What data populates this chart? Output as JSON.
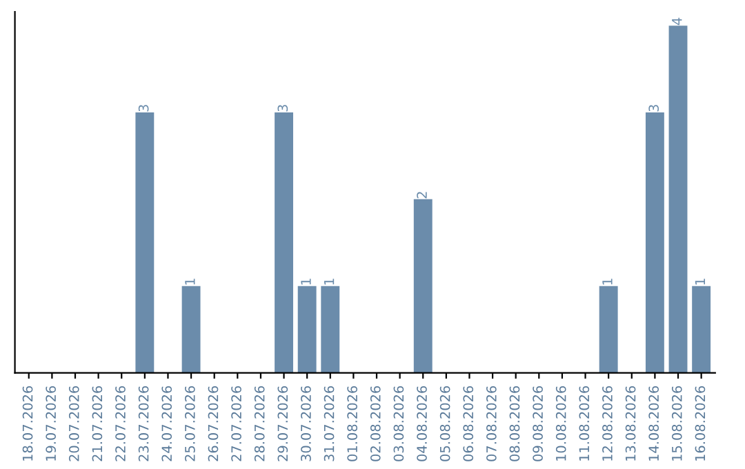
{
  "chart_data": {
    "type": "bar",
    "categories": [
      "18.07.2026",
      "19.07.2026",
      "20.07.2026",
      "21.07.2026",
      "22.07.2026",
      "23.07.2026",
      "24.07.2026",
      "25.07.2026",
      "26.07.2026",
      "27.07.2026",
      "28.07.2026",
      "29.07.2026",
      "30.07.2026",
      "31.07.2026",
      "01.08.2026",
      "02.08.2026",
      "03.08.2026",
      "04.08.2026",
      "05.08.2026",
      "06.08.2026",
      "07.08.2026",
      "08.08.2026",
      "09.08.2026",
      "10.08.2026",
      "11.08.2026",
      "12.08.2026",
      "13.08.2026",
      "14.08.2026",
      "15.08.2026",
      "16.08.2026"
    ],
    "values": [
      0,
      0,
      0,
      0,
      0,
      3,
      0,
      1,
      0,
      0,
      0,
      3,
      1,
      1,
      0,
      0,
      0,
      2,
      0,
      0,
      0,
      0,
      0,
      0,
      0,
      1,
      0,
      3,
      4,
      1
    ],
    "value_labels": [
      null,
      null,
      null,
      null,
      null,
      "3",
      null,
      "1",
      null,
      null,
      null,
      "3",
      "1",
      "1",
      null,
      null,
      null,
      "2",
      null,
      null,
      null,
      null,
      null,
      null,
      null,
      "1",
      null,
      "3",
      "4",
      "1"
    ],
    "color": "#6b8cab",
    "tick_labels": "x"
  }
}
